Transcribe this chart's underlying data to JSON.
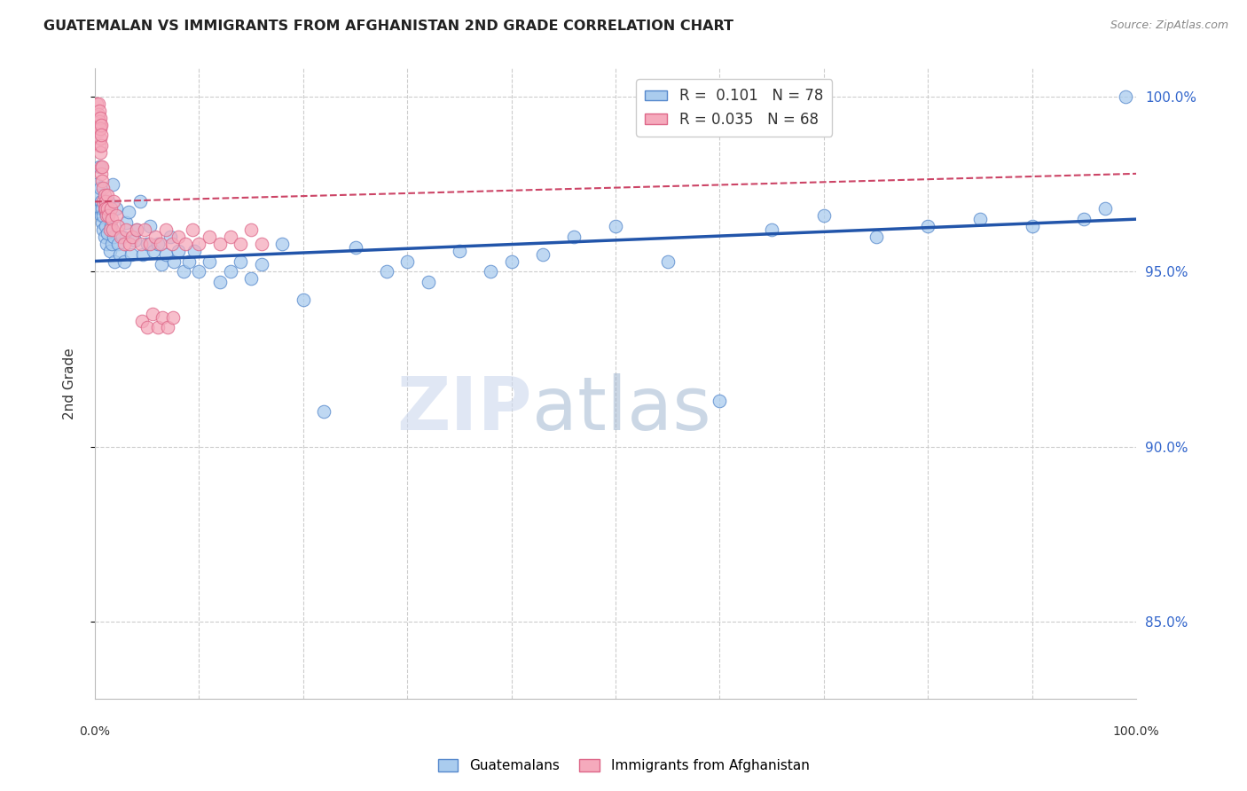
{
  "title": "GUATEMALAN VS IMMIGRANTS FROM AFGHANISTAN 2ND GRADE CORRELATION CHART",
  "source": "Source: ZipAtlas.com",
  "ylabel": "2nd Grade",
  "xlim": [
    0.0,
    1.0
  ],
  "ylim": [
    0.828,
    1.008
  ],
  "yticks": [
    0.85,
    0.9,
    0.95,
    1.0
  ],
  "ytick_labels": [
    "85.0%",
    "90.0%",
    "95.0%",
    "100.0%"
  ],
  "background_color": "#ffffff",
  "blue_scatter_color": "#aaccee",
  "blue_edge_color": "#5588cc",
  "blue_line_color": "#2255aa",
  "pink_scatter_color": "#f5aabc",
  "pink_edge_color": "#dd6688",
  "pink_line_color": "#cc4466",
  "legend_blue_label": "R =  0.101   N = 78",
  "legend_pink_label": "R = 0.035   N = 68",
  "blue_x": [
    0.002,
    0.003,
    0.004,
    0.005,
    0.005,
    0.006,
    0.006,
    0.007,
    0.007,
    0.008,
    0.008,
    0.009,
    0.01,
    0.01,
    0.011,
    0.012,
    0.013,
    0.014,
    0.015,
    0.016,
    0.017,
    0.018,
    0.019,
    0.02,
    0.022,
    0.024,
    0.026,
    0.028,
    0.03,
    0.032,
    0.035,
    0.038,
    0.04,
    0.043,
    0.046,
    0.05,
    0.053,
    0.056,
    0.06,
    0.064,
    0.068,
    0.072,
    0.076,
    0.08,
    0.085,
    0.09,
    0.095,
    0.1,
    0.11,
    0.12,
    0.13,
    0.14,
    0.15,
    0.16,
    0.18,
    0.2,
    0.22,
    0.25,
    0.28,
    0.3,
    0.32,
    0.35,
    0.38,
    0.4,
    0.43,
    0.46,
    0.5,
    0.55,
    0.6,
    0.65,
    0.7,
    0.75,
    0.8,
    0.85,
    0.9,
    0.95,
    0.97,
    0.99
  ],
  "blue_y": [
    0.975,
    0.972,
    0.98,
    0.968,
    0.974,
    0.966,
    0.97,
    0.964,
    0.968,
    0.962,
    0.966,
    0.96,
    0.963,
    0.967,
    0.958,
    0.961,
    0.97,
    0.956,
    0.963,
    0.958,
    0.975,
    0.96,
    0.953,
    0.968,
    0.958,
    0.955,
    0.96,
    0.953,
    0.964,
    0.967,
    0.955,
    0.959,
    0.962,
    0.97,
    0.955,
    0.958,
    0.963,
    0.956,
    0.958,
    0.952,
    0.955,
    0.96,
    0.953,
    0.956,
    0.95,
    0.953,
    0.956,
    0.95,
    0.953,
    0.947,
    0.95,
    0.953,
    0.948,
    0.952,
    0.958,
    0.942,
    0.91,
    0.957,
    0.95,
    0.953,
    0.947,
    0.956,
    0.95,
    0.953,
    0.955,
    0.96,
    0.963,
    0.953,
    0.913,
    0.962,
    0.966,
    0.96,
    0.963,
    0.965,
    0.963,
    0.965,
    0.968,
    1.0
  ],
  "pink_x": [
    0.002,
    0.003,
    0.003,
    0.004,
    0.004,
    0.005,
    0.005,
    0.005,
    0.006,
    0.006,
    0.006,
    0.007,
    0.007,
    0.008,
    0.008,
    0.009,
    0.009,
    0.01,
    0.01,
    0.011,
    0.012,
    0.012,
    0.013,
    0.014,
    0.015,
    0.016,
    0.017,
    0.018,
    0.02,
    0.022,
    0.025,
    0.028,
    0.03,
    0.033,
    0.036,
    0.04,
    0.044,
    0.048,
    0.053,
    0.058,
    0.063,
    0.068,
    0.074,
    0.08,
    0.087,
    0.094,
    0.1,
    0.11,
    0.12,
    0.13,
    0.14,
    0.15,
    0.16,
    0.045,
    0.05,
    0.055,
    0.06,
    0.065,
    0.07,
    0.075,
    0.003,
    0.003,
    0.004,
    0.004,
    0.005,
    0.005,
    0.006,
    0.006
  ],
  "pink_y": [
    0.998,
    0.994,
    0.99,
    0.992,
    0.986,
    0.992,
    0.988,
    0.984,
    0.986,
    0.98,
    0.978,
    0.976,
    0.98,
    0.974,
    0.97,
    0.968,
    0.972,
    0.97,
    0.968,
    0.966,
    0.972,
    0.968,
    0.966,
    0.962,
    0.968,
    0.965,
    0.962,
    0.97,
    0.966,
    0.963,
    0.96,
    0.958,
    0.962,
    0.958,
    0.96,
    0.962,
    0.958,
    0.962,
    0.958,
    0.96,
    0.958,
    0.962,
    0.958,
    0.96,
    0.958,
    0.962,
    0.958,
    0.96,
    0.958,
    0.96,
    0.958,
    0.962,
    0.958,
    0.936,
    0.934,
    0.938,
    0.934,
    0.937,
    0.934,
    0.937,
    0.998,
    0.995,
    0.996,
    0.993,
    0.994,
    0.991,
    0.992,
    0.989
  ]
}
